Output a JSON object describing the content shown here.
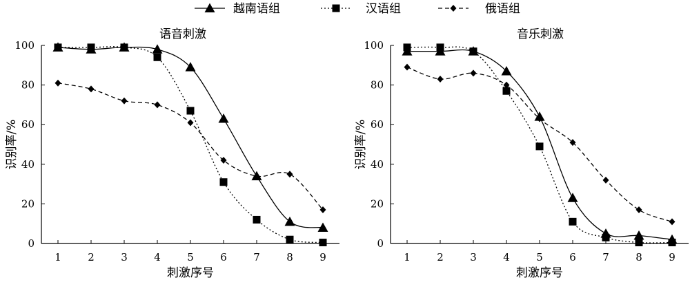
{
  "legend": [
    {
      "name": "越南语组",
      "style": "solid",
      "marker": "triangle"
    },
    {
      "name": "汉语组",
      "style": "dotted",
      "marker": "square"
    },
    {
      "name": "俄语组",
      "style": "dashed",
      "marker": "diamond"
    }
  ],
  "chart_data": [
    {
      "type": "line",
      "title": "语音刺激",
      "xlabel": "刺激序号",
      "ylabel": "识别率/%",
      "x": [
        1,
        2,
        3,
        4,
        5,
        6,
        7,
        8,
        9
      ],
      "xlim": [
        0.5,
        9.5
      ],
      "ylim": [
        0,
        100
      ],
      "yticks": [
        0,
        20,
        40,
        60,
        80,
        100
      ],
      "grid": false,
      "legend_position": "top",
      "series": [
        {
          "name": "越南语组",
          "style": "solid",
          "marker": "triangle",
          "values": [
            99,
            98,
            99,
            98,
            89,
            63,
            34,
            11,
            8
          ]
        },
        {
          "name": "汉语组",
          "style": "dotted",
          "marker": "square",
          "values": [
            99,
            99,
            99,
            94,
            67,
            31,
            12,
            2,
            0.5
          ]
        },
        {
          "name": "俄语组",
          "style": "dashed",
          "marker": "diamond",
          "values": [
            81,
            78,
            72,
            70,
            61,
            42,
            34,
            35,
            17
          ]
        }
      ]
    },
    {
      "type": "line",
      "title": "音乐刺激",
      "xlabel": "刺激序号",
      "ylabel": "识别率/%",
      "x": [
        1,
        2,
        3,
        4,
        5,
        6,
        7,
        8,
        9
      ],
      "xlim": [
        0.5,
        9.5
      ],
      "ylim": [
        0,
        100
      ],
      "yticks": [
        0,
        20,
        40,
        60,
        80,
        100
      ],
      "grid": false,
      "legend_position": "top",
      "series": [
        {
          "name": "越南语组",
          "style": "solid",
          "marker": "triangle",
          "values": [
            97,
            97,
            97,
            87,
            64,
            23,
            5,
            4,
            2
          ]
        },
        {
          "name": "汉语组",
          "style": "dotted",
          "marker": "square",
          "values": [
            99,
            99,
            97,
            77,
            49,
            11,
            3,
            0.5,
            0.5
          ]
        },
        {
          "name": "俄语组",
          "style": "dashed",
          "marker": "diamond",
          "values": [
            89,
            83,
            86,
            80,
            63,
            51,
            32,
            17,
            11
          ]
        }
      ]
    }
  ]
}
